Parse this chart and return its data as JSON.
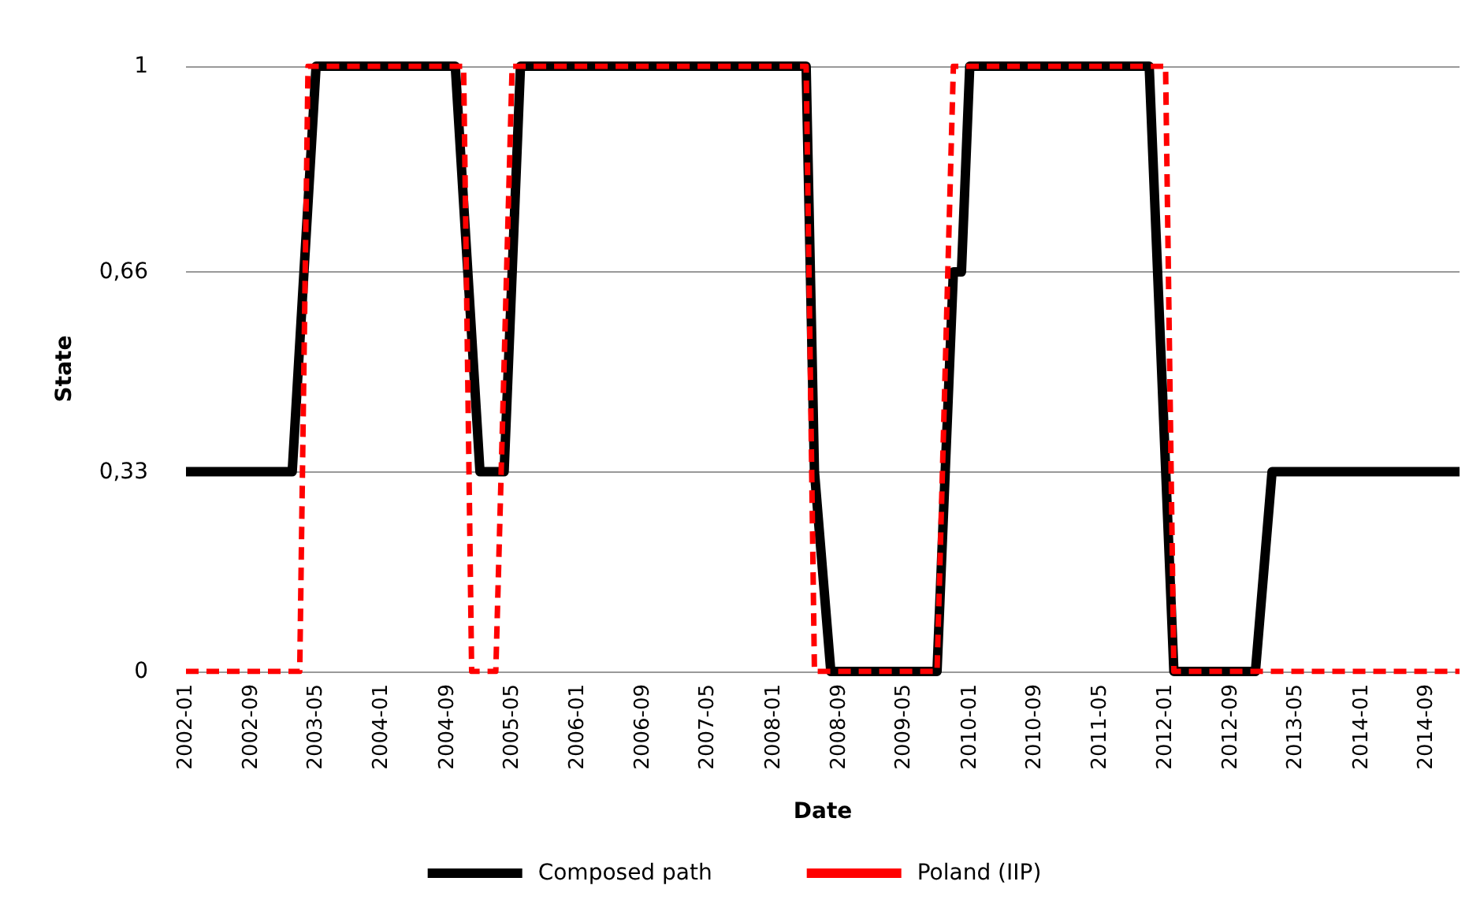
{
  "chart_data": {
    "type": "line",
    "xlabel": "Date",
    "ylabel": "State",
    "xlim": [
      "2002-01",
      "2015-01"
    ],
    "xticks": [
      "2002-01",
      "2002-09",
      "2003-05",
      "2004-01",
      "2004-09",
      "2005-05",
      "2006-01",
      "2006-09",
      "2007-05",
      "2008-01",
      "2008-09",
      "2009-05",
      "2010-01",
      "2010-09",
      "2011-05",
      "2012-01",
      "2012-09",
      "2013-05",
      "2014-01",
      "2014-09"
    ],
    "ylim": [
      0,
      1
    ],
    "yticks": [
      0,
      {
        "value": 0.33,
        "label": "0,33"
      },
      {
        "value": 0.66,
        "label": "0,66"
      },
      1
    ],
    "grid": "y",
    "legend": "bottom",
    "marker": "none",
    "series": [
      {
        "name": "Composed path",
        "color": "#000000",
        "line_style": "solid",
        "x": [
          "2002-01",
          "2003-02",
          "2003-05",
          "2004-10",
          "2005-01",
          "2005-04",
          "2005-06",
          "2008-05",
          "2008-06",
          "2008-08",
          "2009-09",
          "2009-11",
          "2009-12",
          "2010-01",
          "2011-11",
          "2012-02",
          "2012-12",
          "2013-02",
          "2015-01"
        ],
        "values": [
          0.33,
          0.33,
          1,
          1,
          0.33,
          0.33,
          1,
          1,
          0.33,
          0,
          0,
          0.66,
          0.66,
          1,
          1,
          0,
          0,
          0.33,
          0.33
        ]
      },
      {
        "name": "Poland (IIP)",
        "color": "#ff0000",
        "line_style": "dashed",
        "x": [
          "2002-01",
          "2003-03",
          "2003-04",
          "2004-11",
          "2004-12",
          "2005-03",
          "2005-05",
          "2008-05",
          "2008-06",
          "2009-09",
          "2009-11",
          "2012-01",
          "2012-02",
          "2015-01"
        ],
        "values": [
          0,
          0,
          1,
          1,
          0,
          0,
          1,
          1,
          0,
          0,
          1,
          1,
          0,
          0
        ]
      }
    ]
  }
}
